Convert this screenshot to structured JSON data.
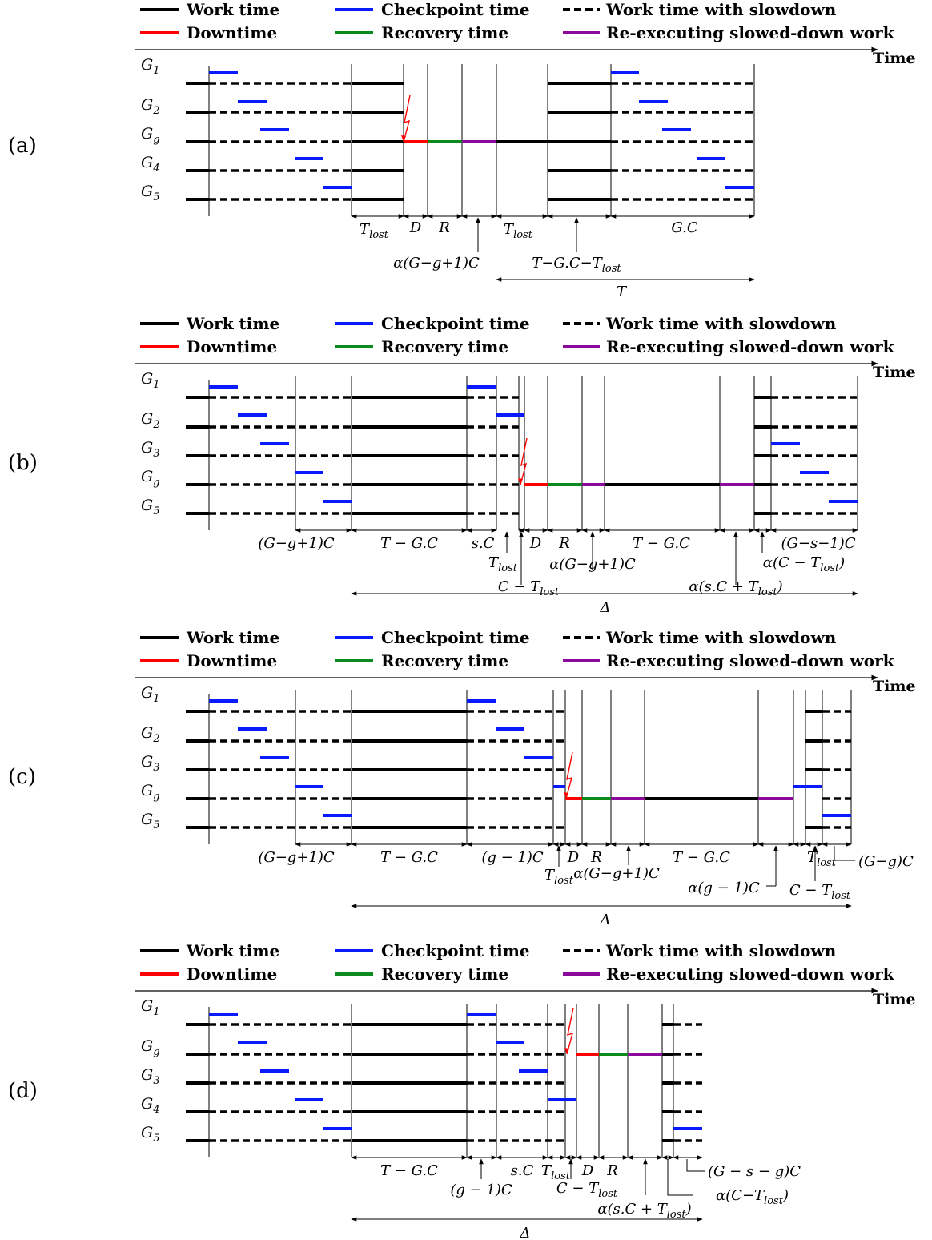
{
  "colors": {
    "work": "#000000",
    "checkpoint": "#0a1aff",
    "downtime": "#ff0000",
    "recovery": "#0b8a1e",
    "reexec": "#8b0a9b",
    "failed_group_label": "#ff0000"
  },
  "legend": {
    "work": "Work time",
    "checkpoint": "Checkpoint time",
    "slowdown": "Work time with slowdown",
    "downtime": "Downtime",
    "recovery": "Recovery time",
    "reexec": "Re-executing slowed-down work"
  },
  "time_axis_label": "Time",
  "panels": [
    {
      "id": "a",
      "label": "(a)",
      "rows": [
        {
          "main": "G",
          "sub": "1",
          "failed": false
        },
        {
          "main": "G",
          "sub": "2",
          "failed": false
        },
        {
          "main": "G",
          "sub": "g",
          "failed": true
        },
        {
          "main": "G",
          "sub": "4",
          "failed": false
        },
        {
          "main": "G",
          "sub": "5",
          "failed": false
        }
      ],
      "annotations": [
        {
          "id": "tlost1",
          "segs": [
            [
              "T",
              ""
            ],
            [
              "lost",
              "sub"
            ]
          ]
        },
        {
          "id": "d",
          "segs": [
            [
              "D",
              ""
            ]
          ]
        },
        {
          "id": "r",
          "segs": [
            [
              "R",
              ""
            ]
          ]
        },
        {
          "id": "tlost2",
          "segs": [
            [
              "T",
              ""
            ],
            [
              "lost",
              "sub"
            ]
          ]
        },
        {
          "id": "gc",
          "segs": [
            [
              "G.C",
              ""
            ]
          ]
        },
        {
          "id": "alpha",
          "segs": [
            [
              "α(G−g+1)C",
              ""
            ]
          ]
        },
        {
          "id": "tgc",
          "segs": [
            [
              "T−G.C−T",
              ""
            ],
            [
              "lost",
              "sub"
            ]
          ]
        },
        {
          "id": "T",
          "segs": [
            [
              "T",
              ""
            ]
          ]
        }
      ]
    },
    {
      "id": "b",
      "label": "(b)",
      "rows": [
        {
          "main": "G",
          "sub": "1",
          "failed": false
        },
        {
          "main": "G",
          "sub": "2",
          "failed": false
        },
        {
          "main": "G",
          "sub": "3",
          "failed": false
        },
        {
          "main": "G",
          "sub": "g",
          "failed": true
        },
        {
          "main": "G",
          "sub": "5",
          "failed": false
        }
      ],
      "annotations": [
        {
          "id": "gg1c",
          "segs": [
            [
              "(G−g+1)C",
              ""
            ]
          ]
        },
        {
          "id": "tgc1",
          "segs": [
            [
              "T − G.C",
              ""
            ]
          ]
        },
        {
          "id": "sc",
          "segs": [
            [
              "s.C",
              ""
            ]
          ]
        },
        {
          "id": "d",
          "segs": [
            [
              "D",
              ""
            ]
          ]
        },
        {
          "id": "r",
          "segs": [
            [
              "R",
              ""
            ]
          ]
        },
        {
          "id": "tgc2",
          "segs": [
            [
              "T − G.C",
              ""
            ]
          ]
        },
        {
          "id": "gs1c",
          "segs": [
            [
              "(G−s−1)C",
              ""
            ]
          ]
        },
        {
          "id": "tlost",
          "segs": [
            [
              "T",
              ""
            ],
            [
              "lost",
              "sub"
            ]
          ]
        },
        {
          "id": "alphag",
          "segs": [
            [
              "α(G−g+1)C",
              ""
            ]
          ]
        },
        {
          "id": "alphact",
          "segs": [
            [
              "α(C − T",
              ""
            ],
            [
              "lost",
              "sub"
            ],
            [
              ")",
              ""
            ]
          ]
        },
        {
          "id": "ctlost",
          "segs": [
            [
              "C − T",
              ""
            ],
            [
              "lost",
              "sub"
            ]
          ]
        },
        {
          "id": "alphasc",
          "segs": [
            [
              "α(s.C + T",
              ""
            ],
            [
              "lost",
              "sub"
            ],
            [
              ")",
              ""
            ]
          ]
        },
        {
          "id": "delta",
          "segs": [
            [
              "Δ",
              ""
            ]
          ]
        }
      ]
    },
    {
      "id": "c",
      "label": "(c)",
      "rows": [
        {
          "main": "G",
          "sub": "1",
          "failed": false
        },
        {
          "main": "G",
          "sub": "2",
          "failed": false
        },
        {
          "main": "G",
          "sub": "3",
          "failed": false
        },
        {
          "main": "G",
          "sub": "g",
          "failed": true
        },
        {
          "main": "G",
          "sub": "5",
          "failed": false
        }
      ],
      "annotations": [
        {
          "id": "gg1c",
          "segs": [
            [
              "(G−g+1)C",
              ""
            ]
          ]
        },
        {
          "id": "tgc1",
          "segs": [
            [
              "T − G.C",
              ""
            ]
          ]
        },
        {
          "id": "g1c",
          "segs": [
            [
              "(g − 1)C",
              ""
            ]
          ]
        },
        {
          "id": "d",
          "segs": [
            [
              "D",
              ""
            ]
          ]
        },
        {
          "id": "r",
          "segs": [
            [
              "R",
              ""
            ]
          ]
        },
        {
          "id": "tgc2",
          "segs": [
            [
              "T − G.C",
              ""
            ]
          ]
        },
        {
          "id": "tlost_r",
          "segs": [
            [
              "T",
              ""
            ],
            [
              "lost",
              "sub"
            ]
          ]
        },
        {
          "id": "ggc",
          "segs": [
            [
              "(G−g)C",
              ""
            ]
          ]
        },
        {
          "id": "tlost_l",
          "segs": [
            [
              "T",
              ""
            ],
            [
              "lost",
              "sub"
            ]
          ]
        },
        {
          "id": "alphag",
          "segs": [
            [
              "α(G−g+1)C",
              ""
            ]
          ]
        },
        {
          "id": "alphag1",
          "segs": [
            [
              "α(g − 1)C",
              ""
            ]
          ]
        },
        {
          "id": "ctlost",
          "segs": [
            [
              "C − T",
              ""
            ],
            [
              "lost",
              "sub"
            ]
          ]
        },
        {
          "id": "delta",
          "segs": [
            [
              "Δ",
              ""
            ]
          ]
        }
      ]
    },
    {
      "id": "d",
      "label": "(d)",
      "rows": [
        {
          "main": "G",
          "sub": "1",
          "failed": false
        },
        {
          "main": "G",
          "sub": "g",
          "failed": true
        },
        {
          "main": "G",
          "sub": "3",
          "failed": false
        },
        {
          "main": "G",
          "sub": "4",
          "failed": false
        },
        {
          "main": "G",
          "sub": "5",
          "failed": false
        }
      ],
      "annotations": [
        {
          "id": "tgc",
          "segs": [
            [
              "T − G.C",
              ""
            ]
          ]
        },
        {
          "id": "sc",
          "segs": [
            [
              "s.C",
              ""
            ]
          ]
        },
        {
          "id": "tlost",
          "segs": [
            [
              "T",
              ""
            ],
            [
              "lost",
              "sub"
            ]
          ]
        },
        {
          "id": "d",
          "segs": [
            [
              "D",
              ""
            ]
          ]
        },
        {
          "id": "r",
          "segs": [
            [
              "R",
              ""
            ]
          ]
        },
        {
          "id": "gsgc",
          "segs": [
            [
              "(G − s − g)C",
              ""
            ]
          ]
        },
        {
          "id": "g1c",
          "segs": [
            [
              "(g − 1)C",
              ""
            ]
          ]
        },
        {
          "id": "ctlost",
          "segs": [
            [
              "C − T",
              ""
            ],
            [
              "lost",
              "sub"
            ]
          ]
        },
        {
          "id": "alphact",
          "segs": [
            [
              "α(C−T",
              ""
            ],
            [
              "lost",
              "sub"
            ],
            [
              ")",
              ""
            ]
          ]
        },
        {
          "id": "alphasc",
          "segs": [
            [
              "α(s.C + T",
              ""
            ],
            [
              "lost",
              "sub"
            ],
            [
              ")",
              ""
            ]
          ]
        },
        {
          "id": "delta",
          "segs": [
            [
              "Δ",
              ""
            ]
          ]
        }
      ]
    }
  ]
}
